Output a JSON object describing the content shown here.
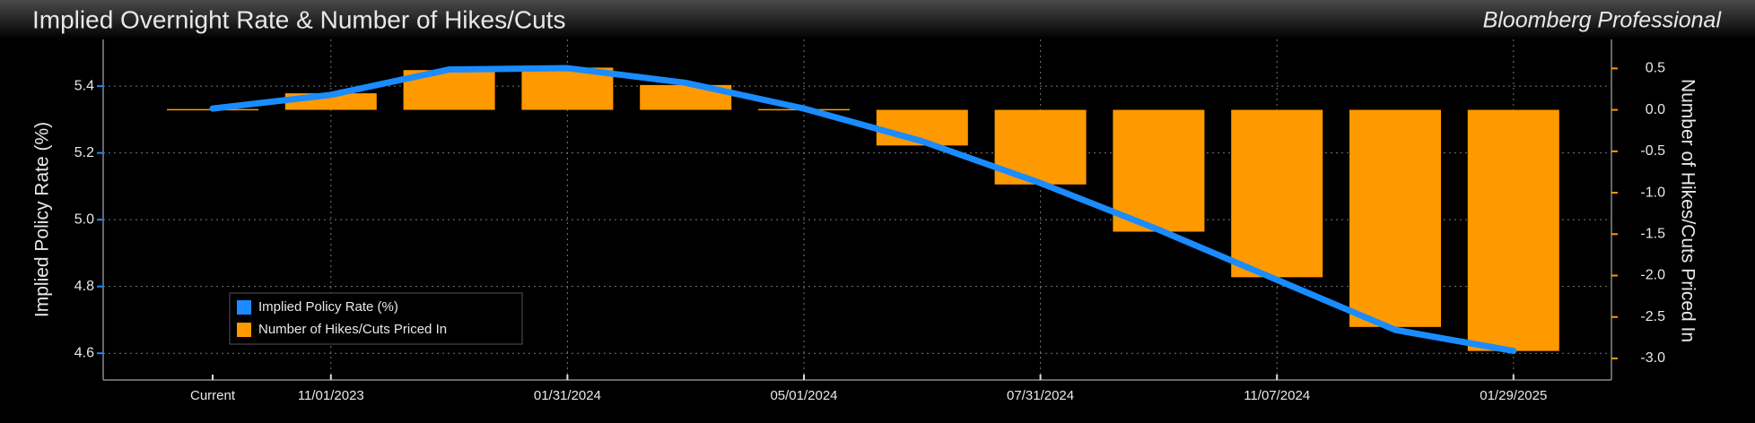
{
  "chart_data": {
    "type": "combo",
    "title": "Implied Overnight Rate & Number of Hikes/Cuts",
    "source": "Bloomberg Professional",
    "ylabel": "Implied Policy Rate (%)",
    "y2label": "Number of Hikes/Cuts Priced In",
    "categories": [
      "Current",
      "11/01/2023",
      null,
      "01/31/2024",
      null,
      "05/01/2024",
      null,
      "07/31/2024",
      null,
      "11/07/2024",
      null,
      "01/29/2025"
    ],
    "series": [
      {
        "name": "Implied Policy Rate (%)",
        "type": "line",
        "color": "#1a8cff",
        "axis": "y",
        "values": [
          5.333,
          5.374,
          5.45,
          5.454,
          5.41,
          5.333,
          5.235,
          5.11,
          4.97,
          4.82,
          4.67,
          4.607
        ]
      },
      {
        "name": "Number of Hikes/Cuts Priced In",
        "type": "bar",
        "color": "#ff9900",
        "axis": "y2",
        "values": [
          0.01,
          0.2,
          0.48,
          0.51,
          0.3,
          0.01,
          -0.43,
          -0.9,
          -1.47,
          -2.02,
          -2.62,
          -2.91
        ]
      }
    ],
    "ylim": [
      4.52,
      5.54
    ],
    "yticks": [
      4.6,
      4.8,
      {
        "value": 5,
        "label": "5.0"
      },
      5.2,
      5.4
    ],
    "y2lim": [
      -3.26,
      0.85
    ],
    "y2ticks": [
      0.5,
      {
        "value": 0,
        "label": "0.0"
      },
      -0.5,
      {
        "value": -1,
        "label": "-1.0"
      },
      -1.5,
      {
        "value": -2,
        "label": "-2.0"
      },
      -2.5,
      {
        "value": -3,
        "label": "-3.0"
      }
    ],
    "grid": true,
    "legend": "lower-left"
  }
}
